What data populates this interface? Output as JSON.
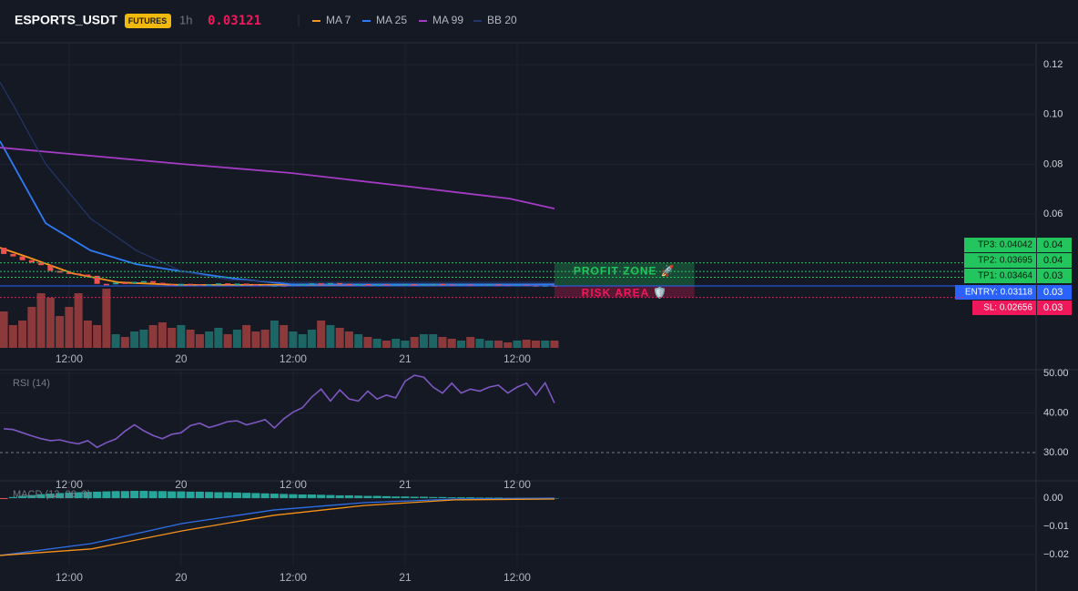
{
  "header": {
    "symbol": "ESPORTS_USDT",
    "badge": "FUTURES",
    "interval": "1h",
    "price": "0.03121"
  },
  "chart_data": [
    {
      "type": "candlestick",
      "x": [
        -19,
        -18,
        -17,
        -16,
        -15,
        -14,
        -13,
        -12,
        -11,
        -10,
        -9,
        -8,
        -7,
        -6,
        -5,
        -4,
        -3,
        -2,
        -1,
        0,
        1,
        2,
        3,
        4,
        5,
        6,
        7,
        8,
        9,
        10,
        11,
        12,
        13,
        14,
        15,
        16,
        17,
        18,
        19,
        20,
        21,
        22,
        23,
        24,
        25,
        26,
        27,
        28,
        29,
        30,
        31,
        32,
        33,
        34,
        35,
        36,
        37,
        38,
        39,
        40
      ],
      "open": [
        0.0465,
        0.044,
        0.043,
        0.0415,
        0.0405,
        0.0395,
        0.0372,
        0.0365,
        0.0362,
        0.0357,
        0.0352,
        0.032,
        0.0318,
        0.0325,
        0.0322,
        0.0328,
        0.0331,
        0.0324,
        0.0318,
        0.0315,
        0.032,
        0.0317,
        0.0313,
        0.0318,
        0.0322,
        0.0319,
        0.0321,
        0.0318,
        0.0316,
        0.0312,
        0.0314,
        0.0311,
        0.0315,
        0.0319,
        0.0322,
        0.0318,
        0.0323,
        0.032,
        0.0317,
        0.0319,
        0.0316,
        0.0318,
        0.0315,
        0.0317,
        0.0319,
        0.0316,
        0.0318,
        0.032,
        0.0317,
        0.0315,
        0.0317,
        0.0314,
        0.0316,
        0.0318,
        0.0315,
        0.0313,
        0.0316,
        0.0314,
        0.0313,
        0.0314
      ],
      "close": [
        0.044,
        0.043,
        0.0415,
        0.0405,
        0.0395,
        0.0372,
        0.0365,
        0.036,
        0.0357,
        0.035,
        0.032,
        0.0318,
        0.0325,
        0.0322,
        0.0328,
        0.0331,
        0.0324,
        0.0318,
        0.0315,
        0.032,
        0.0317,
        0.0313,
        0.0318,
        0.0322,
        0.0319,
        0.0321,
        0.0318,
        0.0316,
        0.0312,
        0.0314,
        0.0311,
        0.0315,
        0.0319,
        0.0322,
        0.0318,
        0.0323,
        0.032,
        0.0317,
        0.0319,
        0.0316,
        0.0318,
        0.0315,
        0.0317,
        0.0319,
        0.0316,
        0.0318,
        0.032,
        0.0317,
        0.0315,
        0.0317,
        0.0314,
        0.0316,
        0.0318,
        0.0315,
        0.0313,
        0.0316,
        0.0314,
        0.0313,
        0.0314,
        0.03121
      ],
      "volume": [
        40,
        25,
        30,
        45,
        60,
        55,
        35,
        45,
        60,
        30,
        25,
        65,
        15,
        12,
        18,
        20,
        25,
        28,
        22,
        25,
        20,
        15,
        18,
        22,
        15,
        20,
        25,
        18,
        20,
        30,
        25,
        18,
        15,
        20,
        30,
        25,
        22,
        18,
        15,
        12,
        10,
        8,
        10,
        8,
        12,
        15,
        15,
        12,
        10,
        8,
        12,
        10,
        8,
        8,
        6,
        8,
        9,
        8,
        8,
        8
      ],
      "up_color": "#26a69a",
      "down_color": "#ef5350",
      "series": [
        {
          "name": "MA 7",
          "color": "#f7931a",
          "x": [
            -19.4,
            -16.5,
            -11.6,
            -6.7,
            0.1,
            11.8,
            24.5,
            35.2,
            40
          ],
          "values": [
            0.0465,
            0.0428,
            0.0362,
            0.0326,
            0.0315,
            0.0316,
            0.0317,
            0.0317,
            0.0318
          ]
        },
        {
          "name": "MA 25",
          "color": "#2f7bf5",
          "x": [
            -19.4,
            -14.5,
            -9.7,
            -4.8,
            0.1,
            6,
            11.8,
            24.5,
            40
          ],
          "values": [
            0.0893,
            0.0563,
            0.0454,
            0.0399,
            0.037,
            0.034,
            0.0318,
            0.0318,
            0.0318
          ]
        },
        {
          "name": "MA 99",
          "color": "#a43bc4",
          "x": [
            -19.4,
            0.1,
            11.8,
            24.5,
            35.2,
            40
          ],
          "values": [
            0.0867,
            0.0801,
            0.0765,
            0.071,
            0.0662,
            0.0622
          ]
        },
        {
          "name": "BB 20",
          "color": "#22366b",
          "x": [
            -19.4,
            -18,
            -14.5,
            -9.7,
            -4.8,
            0.1,
            5,
            11.8,
            40
          ],
          "values": [
            0.113,
            0.1039,
            0.0801,
            0.0582,
            0.0454,
            0.037,
            0.0337,
            0.0326,
            0.0326
          ]
        }
      ],
      "levels": [
        {
          "label": "TP3: 0.04042",
          "value": 0.04042,
          "axis_label": "0.04",
          "color": "#22c55e"
        },
        {
          "label": "TP2: 0.03695",
          "value": 0.03695,
          "axis_label": "0.04",
          "color": "#22c55e"
        },
        {
          "label": "TP1: 0.03464",
          "value": 0.03464,
          "axis_label": "0.03",
          "color": "#22c55e"
        },
        {
          "label": "ENTRY: 0.03118",
          "value": 0.03118,
          "axis_label": "0.03",
          "color": "#2962ff"
        },
        {
          "label": "SL: 0.02656",
          "value": 0.02656,
          "axis_label": "0.03",
          "color": "#f0185a"
        }
      ],
      "annotations": [
        "PROFIT ZONE 🚀",
        "RISK AREA 🛡️"
      ],
      "xlim": [
        -19.4,
        91.6
      ],
      "ylim": [
        0.0063,
        0.1284
      ],
      "xticks": [
        {
          "value": -12,
          "label": "12:00"
        },
        {
          "value": 0,
          "label": "20"
        },
        {
          "value": 12,
          "label": "12:00"
        },
        {
          "value": 24,
          "label": "21"
        },
        {
          "value": 36,
          "label": "12:00"
        }
      ],
      "yticks": [
        0.12,
        {
          "value": 0.1,
          "label": "0.10"
        },
        0.08,
        0.06
      ],
      "grid": true
    },
    {
      "type": "line",
      "title": "RSI (14)",
      "x": [
        -19,
        -18,
        -17,
        -16,
        -15,
        -14,
        -13,
        -12,
        -11,
        -10,
        -9,
        -8,
        -7,
        -6,
        -5,
        -4,
        -3,
        -2,
        -1,
        0,
        1,
        2,
        3,
        4,
        5,
        6,
        7,
        8,
        9,
        10,
        11,
        12,
        13,
        14,
        15,
        16,
        17,
        18,
        19,
        20,
        21,
        22,
        23,
        24,
        25,
        26,
        27,
        28,
        29,
        30,
        31,
        32,
        33,
        34,
        35,
        36,
        37,
        38,
        39,
        40
      ],
      "series": [
        {
          "name": "RSI",
          "color": "#7e57c2",
          "values": [
            36,
            35.8,
            35,
            34.2,
            33.5,
            33,
            33.2,
            32.6,
            32.2,
            33,
            31.3,
            32.5,
            33.4,
            35.4,
            37,
            35.5,
            34.3,
            33.5,
            34.6,
            35,
            36.8,
            37.4,
            36.3,
            37,
            37.8,
            38,
            37,
            37.6,
            38.3,
            36.2,
            38.5,
            40.2,
            41.3,
            44,
            46,
            43,
            45.8,
            43.5,
            43,
            45.5,
            43.5,
            44.5,
            43.8,
            48,
            49.5,
            49,
            46.5,
            45,
            47.5,
            45,
            46,
            45.5,
            46.5,
            47,
            45,
            46.5,
            47.5,
            44.5,
            47.6,
            42.5
          ]
        }
      ],
      "xlim": [
        -19.4,
        91.6
      ],
      "ylim": [
        24.7,
        50.9
      ],
      "xticks": [
        {
          "value": -12,
          "label": "12:00"
        },
        {
          "value": 0,
          "label": "20"
        },
        {
          "value": 12,
          "label": "12:00"
        },
        {
          "value": 24,
          "label": "21"
        },
        {
          "value": 36,
          "label": "12:00"
        }
      ],
      "yticks": [
        {
          "value": 50,
          "label": "50.00"
        },
        {
          "value": 40,
          "label": "40.00"
        },
        {
          "value": 30,
          "label": "30.00"
        }
      ],
      "grid": true
    },
    {
      "type": "macd",
      "title": "MACD (12, 26, 9)",
      "x": [
        -19,
        -18,
        -17,
        -16,
        -15,
        -14,
        -13,
        -12,
        -11,
        -10,
        -9,
        -8,
        -7,
        -6,
        -5,
        -4,
        -3,
        -2,
        -1,
        0,
        1,
        2,
        3,
        4,
        5,
        6,
        7,
        8,
        9,
        10,
        11,
        12,
        13,
        14,
        15,
        16,
        17,
        18,
        19,
        20,
        21,
        22,
        23,
        24,
        25,
        26,
        27,
        28,
        29,
        30,
        31,
        32,
        33,
        34,
        35,
        36,
        37,
        38,
        39,
        40
      ],
      "histogram": {
        "color": "#26a69a",
        "negative_color": "#ef5350",
        "values": [
          -0.0003,
          0.0004,
          0.0008,
          0.0011,
          0.0014,
          0.0016,
          0.0018,
          0.002,
          0.0021,
          0.0022,
          0.0023,
          0.0024,
          0.0025,
          0.0025,
          0.0026,
          0.0026,
          0.0025,
          0.0025,
          0.0024,
          0.0024,
          0.0023,
          0.0023,
          0.0022,
          0.0021,
          0.0021,
          0.002,
          0.0019,
          0.0018,
          0.0017,
          0.0016,
          0.0015,
          0.0014,
          0.0013,
          0.0013,
          0.0012,
          0.0011,
          0.001,
          0.001,
          0.0009,
          0.0008,
          0.0008,
          0.0007,
          0.0006,
          0.0006,
          0.0005,
          0.0005,
          0.0004,
          0.0004,
          0.0003,
          0.0003,
          0.0003,
          0.0002,
          0.0002,
          0.0002,
          0.0001,
          0.0001,
          0.0001,
          0.0001,
          0,
          0
        ]
      },
      "series": [
        {
          "name": "MACD",
          "color": "#2f6fe8",
          "x": [
            -19.4,
            -9.6,
            0.1,
            9.9,
            19.6,
            29.4,
            40
          ],
          "values": [
            -0.0203,
            -0.0161,
            -0.009,
            -0.0042,
            -0.0016,
            -0.0003,
            0
          ]
        },
        {
          "name": "Signal",
          "color": "#f7931a",
          "x": [
            -19.4,
            -9.6,
            0.1,
            9.9,
            19.6,
            29.4,
            40
          ],
          "values": [
            -0.0203,
            -0.018,
            -0.0116,
            -0.0061,
            -0.0026,
            -0.0006,
            -0.0003
          ]
        }
      ],
      "xlim": [
        -19.4,
        91.6
      ],
      "ylim": [
        -0.0242,
        0.0055
      ],
      "xticks": [
        {
          "value": -12,
          "label": "12:00"
        },
        {
          "value": 0,
          "label": "20"
        },
        {
          "value": 12,
          "label": "12:00"
        },
        {
          "value": 24,
          "label": "21"
        },
        {
          "value": 36,
          "label": "12:00"
        }
      ],
      "yticks": [
        {
          "value": 0,
          "label": "0.00"
        },
        {
          "value": -0.01,
          "label": "−0.01"
        },
        {
          "value": -0.02,
          "label": "−0.02"
        }
      ],
      "grid": true
    }
  ]
}
